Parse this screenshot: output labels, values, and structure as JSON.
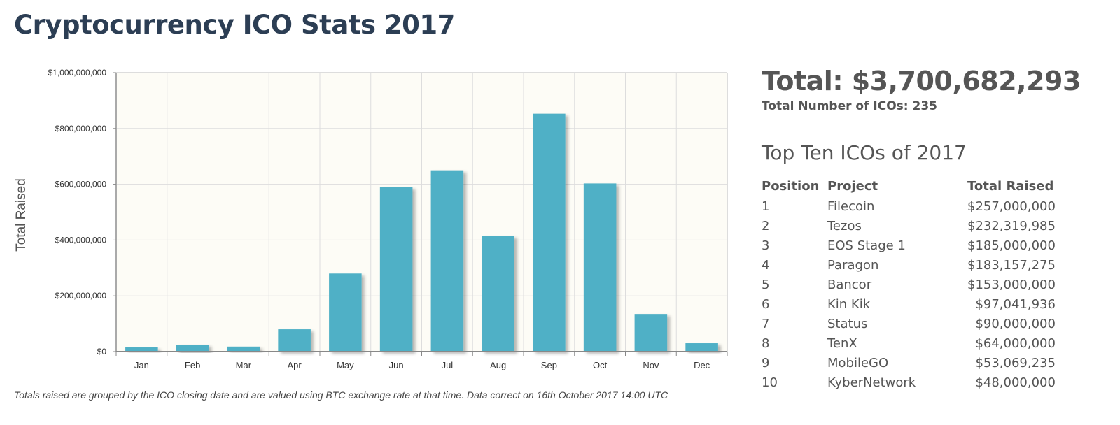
{
  "page": {
    "title": "Cryptocurrency ICO Stats 2017"
  },
  "chart_data": {
    "type": "bar",
    "title": "",
    "xlabel": "",
    "ylabel": "Total Raised",
    "categories": [
      "Jan",
      "Feb",
      "Mar",
      "Apr",
      "May",
      "Jun",
      "Jul",
      "Aug",
      "Sep",
      "Oct",
      "Nov",
      "Dec"
    ],
    "values": [
      15000000,
      25000000,
      18000000,
      80000000,
      280000000,
      590000000,
      650000000,
      415000000,
      853000000,
      603000000,
      135000000,
      30000000
    ],
    "ylim": [
      0,
      1000000000
    ],
    "yticks": [
      0,
      200000000,
      400000000,
      600000000,
      800000000,
      1000000000
    ],
    "ytick_labels": [
      "$0",
      "$200,000,000",
      "$400,000,000",
      "$600,000,000",
      "$800,000,000",
      "$1,000,000,000"
    ],
    "grid": true,
    "bar_color": "#4fb0c6",
    "plot_background": "#fdfcf6"
  },
  "caption": "Totals raised are grouped by the ICO closing date and are valued using BTC exchange rate at that time. Data correct on 16th October 2017 14:00 UTC",
  "summary": {
    "total_label": "Total: $3,700,682,293",
    "count_label": "Total Number of ICOs: 235"
  },
  "top_ten": {
    "title": "Top Ten ICOs of 2017",
    "headers": [
      "Position",
      "Project",
      "Total Raised"
    ],
    "rows": [
      [
        "1",
        "Filecoin",
        "$257,000,000"
      ],
      [
        "2",
        "Tezos",
        "$232,319,985"
      ],
      [
        "3",
        "EOS Stage 1",
        "$185,000,000"
      ],
      [
        "4",
        "Paragon",
        "$183,157,275"
      ],
      [
        "5",
        "Bancor",
        "$153,000,000"
      ],
      [
        "6",
        "Kin Kik",
        "$97,041,936"
      ],
      [
        "7",
        "Status",
        "$90,000,000"
      ],
      [
        "8",
        "TenX",
        "$64,000,000"
      ],
      [
        "9",
        "MobileGO",
        "$53,069,235"
      ],
      [
        "10",
        "KyberNetwork",
        "$48,000,000"
      ]
    ]
  }
}
